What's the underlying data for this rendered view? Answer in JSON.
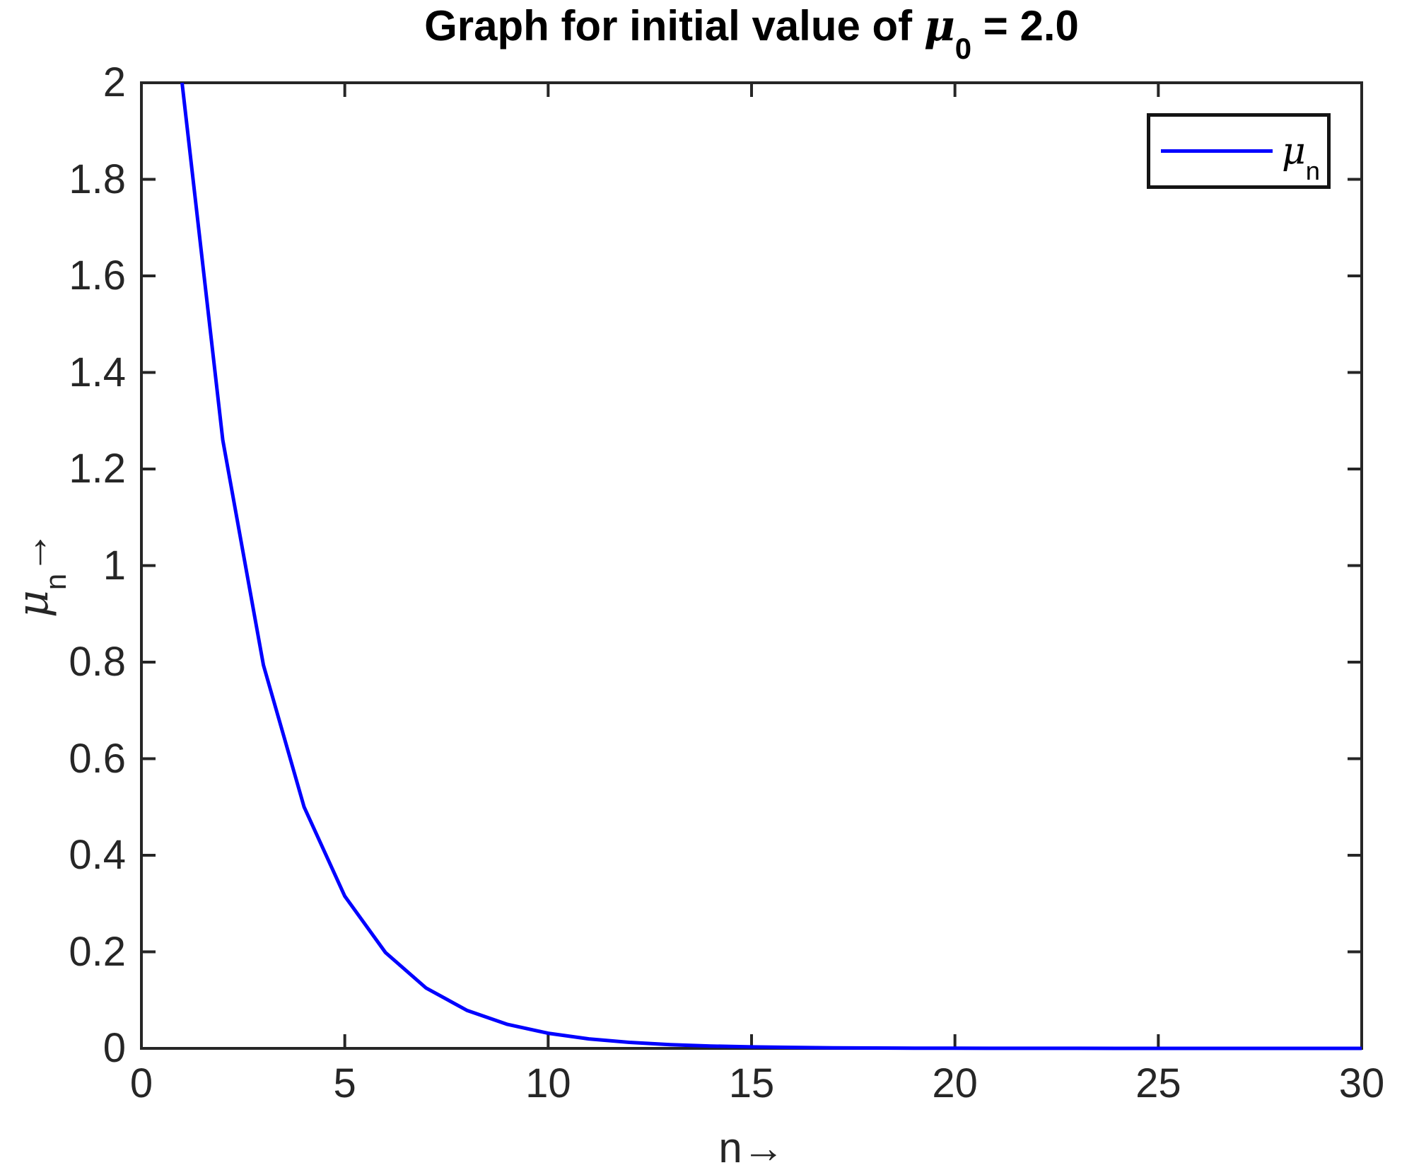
{
  "title": {
    "prefix": "Graph for initial value of ",
    "mu": "μ",
    "sub": "0",
    "suffix": " = 2.0"
  },
  "labels": {
    "y": {
      "mu": "μ",
      "sub": "n",
      "arrow": "→"
    },
    "x": {
      "main": "n",
      "arrow": "→"
    }
  },
  "legend": {
    "mu": "μ",
    "sub": "n"
  },
  "colors": {
    "line": "#0000ff",
    "axis": "#262626",
    "tick_text": "#262626",
    "title_text": "#000000",
    "background": "#ffffff"
  },
  "chart_data": {
    "type": "line",
    "title": "Graph for initial value of mu_0 = 2.0",
    "xlabel": "n",
    "ylabel": "mu_n",
    "xlim": [
      0,
      30
    ],
    "ylim": [
      0,
      2
    ],
    "x_ticks": [
      0,
      5,
      10,
      15,
      20,
      25,
      30
    ],
    "y_ticks": [
      "0",
      "0.2",
      "0.4",
      "0.6",
      "0.8",
      "1",
      "1.2",
      "1.4",
      "1.6",
      "1.8",
      "2"
    ],
    "grid": false,
    "legend_position": "northeast",
    "x": [
      1,
      2,
      3,
      4,
      5,
      6,
      7,
      8,
      9,
      10,
      11,
      12,
      13,
      14,
      15,
      16,
      17,
      18,
      19,
      20,
      21,
      22,
      23,
      24,
      25,
      26,
      27,
      28,
      29,
      30
    ],
    "series": [
      {
        "name": "mu_n",
        "values": [
          2.0,
          1.26,
          0.7938,
          0.5001,
          0.3151,
          0.1985,
          0.125,
          0.0788,
          0.0496,
          0.0313,
          0.0197,
          0.0124,
          0.0078,
          0.0049,
          0.0031,
          0.002,
          0.0012,
          0.0008,
          0.0005,
          0.0003,
          0.0002,
          0.0001,
          0.0001,
          0.0,
          0.0,
          0.0,
          0.0,
          0.0,
          0.0,
          0.0
        ]
      }
    ]
  }
}
